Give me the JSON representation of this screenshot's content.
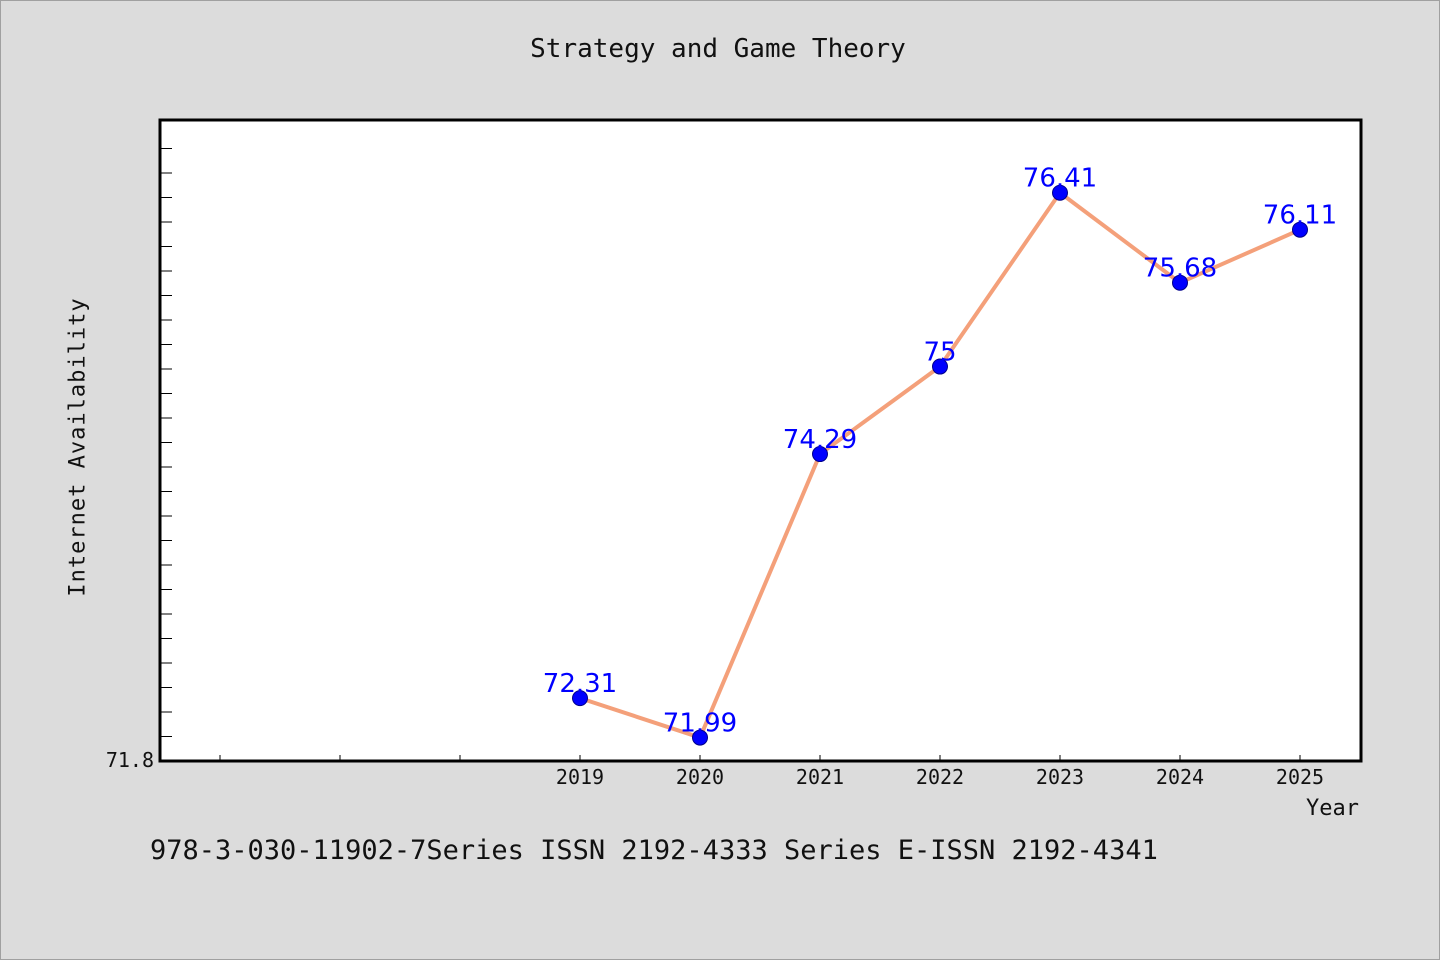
{
  "chart_data": {
    "type": "line",
    "title": "Strategy and Game Theory",
    "xlabel": "Year",
    "ylabel": "Internet Availability",
    "categories": [
      "2019",
      "2020",
      "2021",
      "2022",
      "2023",
      "2024",
      "2025"
    ],
    "series": [
      {
        "values": [
          72.31,
          71.99,
          74.29,
          75,
          76.41,
          75.68,
          76.11
        ],
        "labels": [
          "72.31",
          "71.99",
          "74.29",
          "75",
          "76.41",
          "75.68",
          "76.11"
        ]
      }
    ],
    "ylim": [
      71.8,
      77.0
    ],
    "y_tick_label": "71.8",
    "grid": false,
    "line_color": "#f4a07a",
    "marker_color": "#0000ff",
    "label_color": "#0000ff"
  },
  "footer": {
    "text": "978-3-030-11902-7Series ISSN 2192-4333 Series E-ISSN 2192-4341"
  }
}
